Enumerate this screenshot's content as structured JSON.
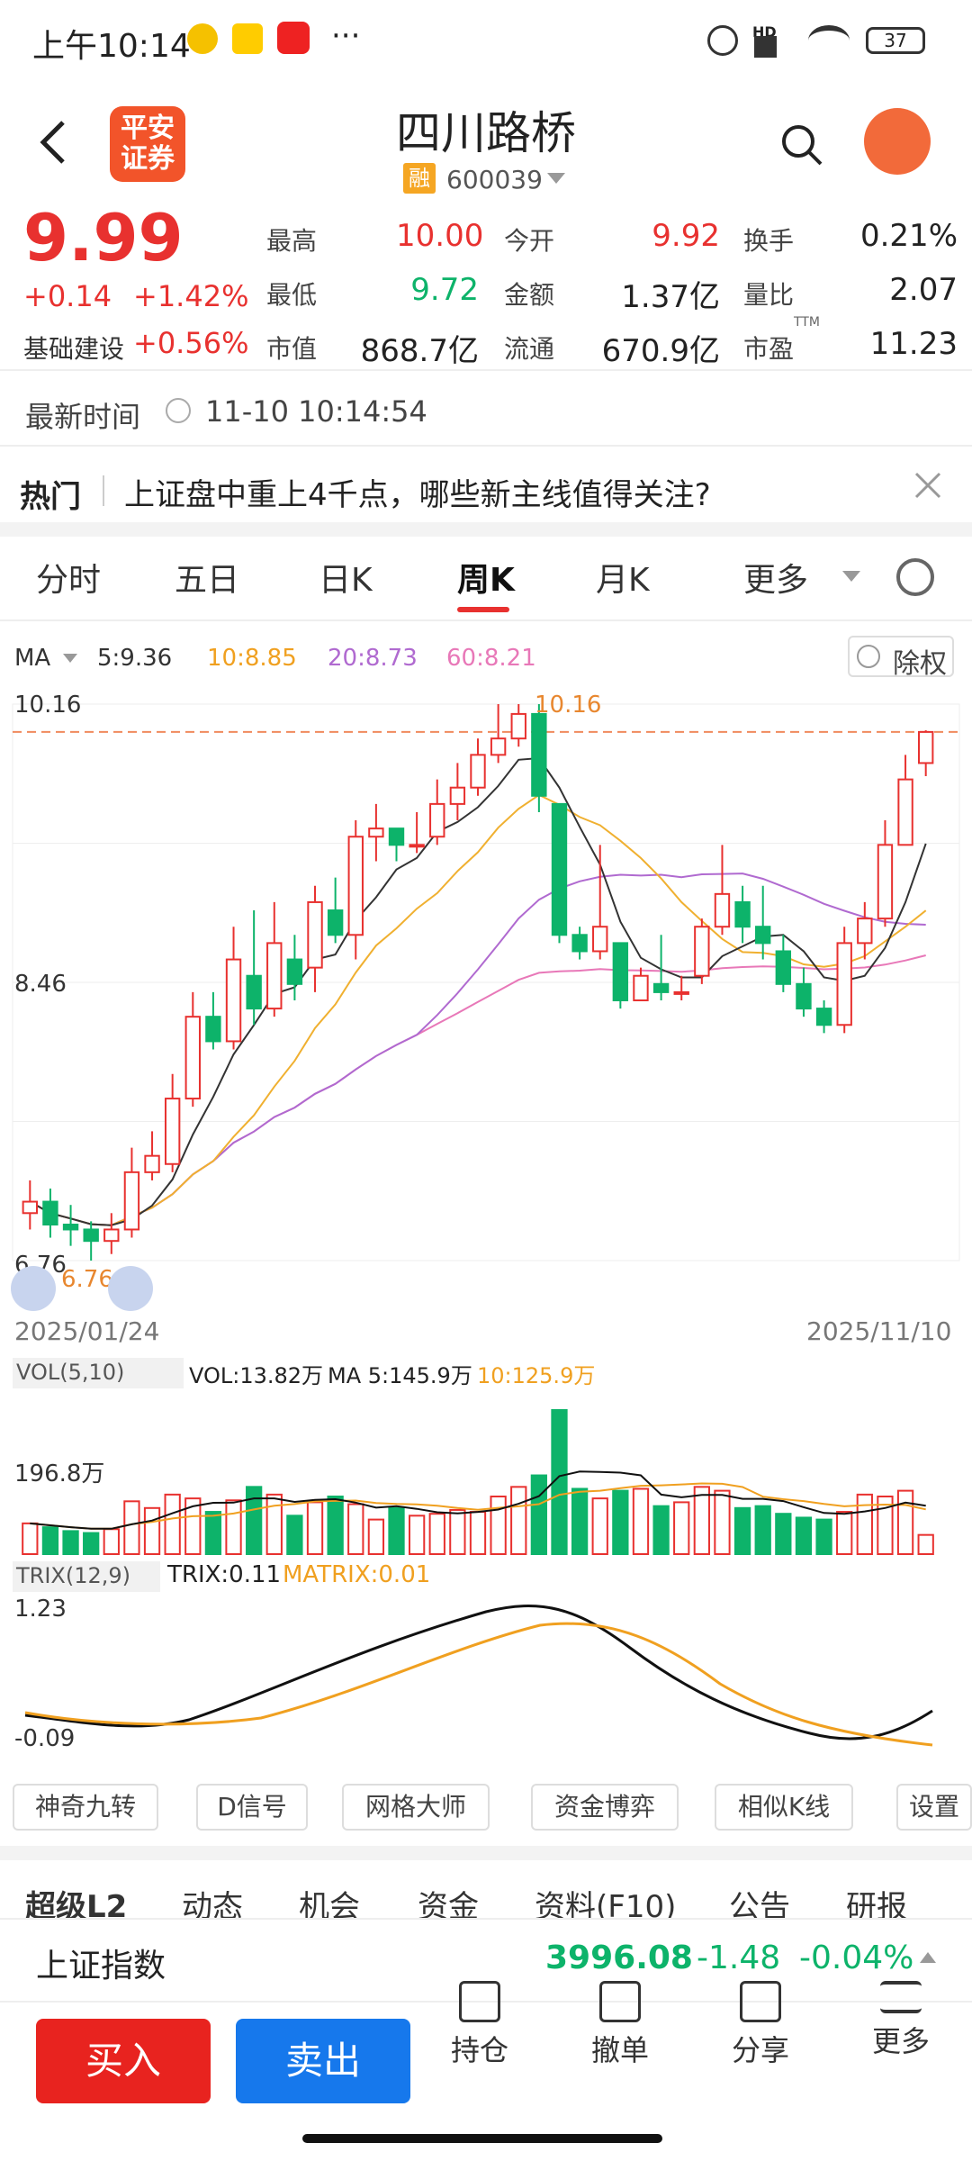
{
  "status": {
    "time": "上午10:14",
    "app_icons": [
      "weibo-icon",
      "meituan-icon",
      "taobao-icon"
    ],
    "more": "···",
    "battery": "37",
    "net": "HD"
  },
  "header": {
    "broker_logo": "平安\n证券",
    "title": "四川路桥",
    "margin_tag": "融",
    "code": "600039"
  },
  "quote": {
    "price": "9.99",
    "change": "+0.14",
    "change_pct": "+1.42%",
    "sector": "基础建设",
    "sector_pct": "+0.56%",
    "stats": [
      {
        "l1": "最高",
        "v1": "10.00",
        "l2": "今开",
        "v2": "9.92",
        "l3": "换手",
        "v3": "0.21%"
      },
      {
        "l1": "最低",
        "v1": "9.72",
        "l2": "金额",
        "v2": "1.37亿",
        "l3": "量比",
        "v3": "2.07"
      },
      {
        "l1": "市值",
        "v1": "868.7亿",
        "l2": "流通",
        "v2": "670.9亿",
        "l3": "市盈",
        "v3": "11.23",
        "l3sup": "TTM"
      }
    ]
  },
  "update": {
    "label": "最新时间",
    "time": "11-10 10:14:54"
  },
  "hot": {
    "label": "热门",
    "text": "上证盘中重上4千点，哪些新主线值得关注?"
  },
  "tabs": [
    "分时",
    "五日",
    "日K",
    "周K",
    "月K",
    "更多"
  ],
  "ma": {
    "label": "MA",
    "m5": "5:9.36",
    "m10": "10:8.85",
    "m20": "20:8.73",
    "m60": "60:8.21",
    "adjust": "除权"
  },
  "axis": {
    "top": "10.16",
    "mid": "8.46",
    "bottom": "6.76",
    "high_mark": "10.16",
    "low_mark": "6.76",
    "date_start": "2025/01/24",
    "date_end": "2025/11/10"
  },
  "vol": {
    "label": "VOL(5,10)",
    "vol": "VOL:13.82万",
    "ma5": "MA 5:145.9万",
    "ma10": "10:125.9万",
    "axis": "196.8万"
  },
  "trix": {
    "label": "TRIX(12,9)",
    "trix": "TRIX:0.11",
    "matrix": "MATRIX:0.01",
    "top": "1.23",
    "bottom": "-0.09"
  },
  "tools": [
    "神奇九转",
    "D信号",
    "网格大师",
    "资金博弈",
    "相似K线",
    "设置"
  ],
  "sections": [
    "超级L2",
    "动态",
    "机会",
    "资金",
    "资料(F10)",
    "公告",
    "研报"
  ],
  "index": {
    "name": "上证指数",
    "value": "3996.08",
    "change": "-1.48",
    "pct": "-0.04%"
  },
  "bottom": {
    "buy": "买入",
    "sell": "卖出",
    "nav": [
      "持仓",
      "撤单",
      "分享",
      "更多"
    ]
  },
  "chart_data": {
    "type": "candlestick",
    "ylim": [
      6.76,
      10.16
    ],
    "candles": [
      [
        7.05,
        7.12,
        7.25,
        6.95
      ],
      [
        7.12,
        6.98,
        7.2,
        6.9
      ],
      [
        6.98,
        6.95,
        7.1,
        6.85
      ],
      [
        6.95,
        6.88,
        7.0,
        6.76
      ],
      [
        6.88,
        6.95,
        7.05,
        6.8
      ],
      [
        6.95,
        7.3,
        7.45,
        6.9
      ],
      [
        7.3,
        7.4,
        7.55,
        7.25
      ],
      [
        7.35,
        7.75,
        7.9,
        7.3
      ],
      [
        7.75,
        8.25,
        8.4,
        7.7
      ],
      [
        8.25,
        8.1,
        8.4,
        8.05
      ],
      [
        8.1,
        8.6,
        8.8,
        8.05
      ],
      [
        8.5,
        8.3,
        8.9,
        8.2
      ],
      [
        8.3,
        8.7,
        8.95,
        8.25
      ],
      [
        8.6,
        8.45,
        8.75,
        8.35
      ],
      [
        8.55,
        8.95,
        9.05,
        8.4
      ],
      [
        8.9,
        8.75,
        9.1,
        8.7
      ],
      [
        8.75,
        9.35,
        9.45,
        8.6
      ],
      [
        9.35,
        9.4,
        9.55,
        9.2
      ],
      [
        9.4,
        9.3,
        9.4,
        9.2
      ],
      [
        9.3,
        9.3,
        9.5,
        9.25
      ],
      [
        9.35,
        9.55,
        9.7,
        9.3
      ],
      [
        9.55,
        9.65,
        9.8,
        9.45
      ],
      [
        9.65,
        9.85,
        9.95,
        9.6
      ],
      [
        9.85,
        9.95,
        10.16,
        9.8
      ],
      [
        9.95,
        10.1,
        10.16,
        9.9
      ],
      [
        10.1,
        9.6,
        10.16,
        9.5
      ],
      [
        9.55,
        8.75,
        9.55,
        8.7
      ],
      [
        8.75,
        8.65,
        8.8,
        8.6
      ],
      [
        8.65,
        8.8,
        9.3,
        8.6
      ],
      [
        8.7,
        8.35,
        8.7,
        8.3
      ],
      [
        8.35,
        8.5,
        8.55,
        8.35
      ],
      [
        8.45,
        8.4,
        8.75,
        8.35
      ],
      [
        8.4,
        8.4,
        8.5,
        8.35
      ],
      [
        8.5,
        8.8,
        8.85,
        8.45
      ],
      [
        8.8,
        9.0,
        9.3,
        8.75
      ],
      [
        8.95,
        8.8,
        9.05,
        8.7
      ],
      [
        8.8,
        8.7,
        9.05,
        8.6
      ],
      [
        8.65,
        8.45,
        8.75,
        8.4
      ],
      [
        8.45,
        8.3,
        8.55,
        8.25
      ],
      [
        8.3,
        8.2,
        8.35,
        8.15
      ],
      [
        8.2,
        8.7,
        8.8,
        8.15
      ],
      [
        8.7,
        8.85,
        8.95,
        8.6
      ],
      [
        8.85,
        9.3,
        9.45,
        8.8
      ],
      [
        9.3,
        9.7,
        9.85,
        9.3
      ],
      [
        9.8,
        9.99,
        10.0,
        9.72
      ]
    ],
    "volume": [
      32,
      28,
      24,
      22,
      26,
      55,
      48,
      62,
      58,
      44,
      56,
      70,
      62,
      40,
      54,
      60,
      52,
      36,
      48,
      40,
      42,
      46,
      44,
      60,
      70,
      82,
      150,
      68,
      58,
      66,
      68,
      50,
      54,
      70,
      66,
      48,
      50,
      42,
      38,
      36,
      44,
      62,
      60,
      66,
      20
    ],
    "vol_colors": "rise=red,fall=green"
  }
}
